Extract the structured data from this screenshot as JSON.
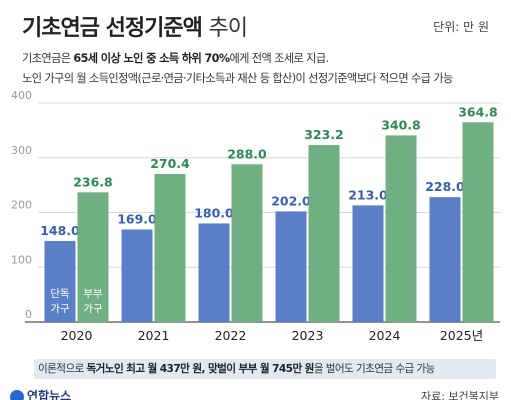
{
  "header": {
    "title_main": "기초연금 선정기준액",
    "title_sub": "추이",
    "unit": "단위: 만 원"
  },
  "description": {
    "line1_prefix": "기초연금은 ",
    "line1_bold": "65세 이상 노인 중 소득 하위 70%",
    "line1_suffix": "에게 전액 조세로 지급.",
    "line2": "노인 가구의 월 소득인정액(근로·연금·기타소득과 재산 등 합산)이 선정기준액보다 적으면 수급 가능"
  },
  "chart_data": {
    "type": "bar",
    "categories": [
      "2020",
      "2021",
      "2022",
      "2023",
      "2024",
      "2025년"
    ],
    "series": [
      {
        "name": "단독 가구",
        "values": [
          148.0,
          169.0,
          180.0,
          202.0,
          213.0,
          228.0
        ]
      },
      {
        "name": "부부 가구",
        "values": [
          236.8,
          270.4,
          288.0,
          323.2,
          340.8,
          364.8
        ]
      }
    ],
    "value_labels": [
      [
        "148.0",
        "169.0",
        "180.0",
        "202.0",
        "213.0",
        "228.0"
      ],
      [
        "236.8",
        "270.4",
        "288.0",
        "323.2",
        "340.8",
        "364.8"
      ]
    ],
    "y_ticks": [
      "0",
      "100",
      "200",
      "300",
      "400"
    ],
    "ylim": [
      0,
      400
    ],
    "grid": true,
    "legend_placement": "inside-first-bars",
    "colors": {
      "single": "#5b7fc7",
      "couple": "#6faf82",
      "single_label": "#3a5fae",
      "couple_label": "#2e8a55"
    }
  },
  "footer": {
    "note_prefix": "이론적으로 ",
    "note_bold1": "독거노인 최고 월 437만 원, 맞벌이 부부 월 745만 원",
    "note_suffix": "을 벌어도 기초연금 수급 가능",
    "logo": "연합뉴스",
    "source": "자료: 보건복지부"
  }
}
